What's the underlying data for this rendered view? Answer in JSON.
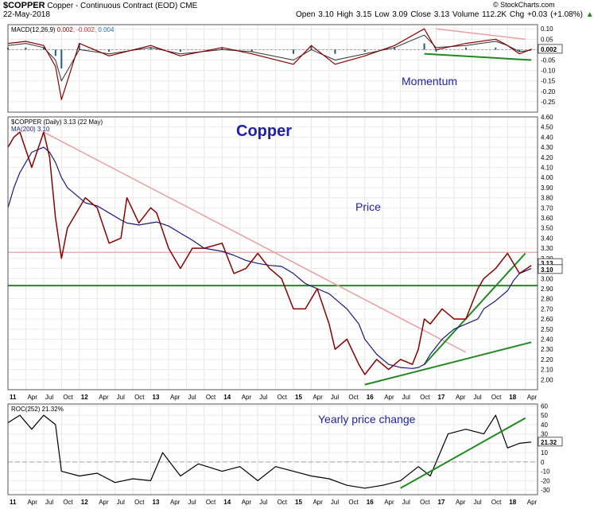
{
  "header": {
    "symbol": "$COPPER",
    "description": "Copper - Continuous Contract (EOD)",
    "exchange": "CME",
    "date": "22-May-2018",
    "quote": "Open 3.10  High 3.15  Low 3.09  Close 3.13  Volume 112.2K  Chg +0.03 (+1.08%)",
    "quote_arrow": "▲",
    "watermark": "© StockCharts.com"
  },
  "colors": {
    "price": "#8b0000",
    "ma": "#1a1a7a",
    "trend_green": "#1f8a1f",
    "trend_pink": "#e8a0a0",
    "note_blue": "#1f1faa",
    "macd_hist": "#1f5f7a"
  },
  "chart_data": [
    {
      "type": "line",
      "panel": "macd",
      "legend": "MACD(12,26,9) 0.002, -0.002, 0.004",
      "legend_parts": [
        "MACD(12,26,9)",
        "0.002",
        "-0.002",
        "0.004"
      ],
      "annotation": "Momentum",
      "ylim": [
        -0.3,
        0.12
      ],
      "yticks": [
        "0.10",
        "0.05",
        "0.00",
        "-0.05",
        "-0.10",
        "-0.15",
        "-0.20",
        "-0.25"
      ],
      "ytick_values": [
        0.1,
        0.05,
        0.0,
        -0.05,
        -0.1,
        -0.15,
        -0.2,
        -0.25
      ],
      "last_value_label": "0.002",
      "x": [
        "2011-01",
        "2011-04",
        "2011-07",
        "2011-09",
        "2011-10",
        "2012-01",
        "2012-06",
        "2013-01",
        "2013-06",
        "2014-01",
        "2014-06",
        "2015-01",
        "2015-04",
        "2015-08",
        "2016-01",
        "2016-06",
        "2016-11",
        "2017-01",
        "2017-06",
        "2017-11",
        "2018-01",
        "2018-03",
        "2018-05"
      ],
      "series": [
        {
          "name": "MACD",
          "values": [
            0.03,
            0.04,
            0.02,
            -0.08,
            -0.24,
            0.03,
            -0.03,
            0.02,
            -0.03,
            0.01,
            -0.02,
            -0.07,
            0.02,
            -0.07,
            -0.03,
            0.02,
            0.1,
            0.0,
            0.03,
            0.05,
            0.02,
            -0.02,
            0.002
          ]
        },
        {
          "name": "Signal",
          "values": [
            0.02,
            0.03,
            0.01,
            -0.05,
            -0.15,
            0.0,
            -0.02,
            0.01,
            -0.02,
            0.0,
            -0.01,
            -0.05,
            0.0,
            -0.05,
            -0.02,
            0.01,
            0.07,
            0.01,
            0.02,
            0.04,
            0.02,
            -0.01,
            -0.002
          ]
        }
      ],
      "trendlines": [
        {
          "color": "pink",
          "from": [
            "2017-01",
            0.1
          ],
          "to": [
            "2018-04",
            0.05
          ]
        },
        {
          "color": "green",
          "from": [
            "2016-11",
            -0.02
          ],
          "to": [
            "2018-05",
            -0.05
          ]
        }
      ]
    },
    {
      "type": "line",
      "panel": "price",
      "legend_price": "$COPPER (Daily) 3.13 (22 May)",
      "legend_ma": "MA(200) 3.10",
      "title": "Copper",
      "annotation": "Price",
      "ylim": [
        1.9,
        4.6
      ],
      "yticks": [
        "4.60",
        "4.50",
        "4.40",
        "4.30",
        "4.20",
        "4.10",
        "4.00",
        "3.90",
        "3.80",
        "3.70",
        "3.60",
        "3.50",
        "3.40",
        "3.30",
        "3.20",
        "3.10",
        "3.00",
        "2.90",
        "2.80",
        "2.70",
        "2.60",
        "2.50",
        "2.40",
        "2.30",
        "2.20",
        "2.10",
        "2.00"
      ],
      "ytick_values": [
        4.6,
        4.5,
        4.4,
        4.3,
        4.2,
        4.1,
        4.0,
        3.9,
        3.8,
        3.7,
        3.6,
        3.5,
        3.4,
        3.3,
        3.2,
        3.1,
        3.0,
        2.9,
        2.8,
        2.7,
        2.6,
        2.5,
        2.4,
        2.3,
        2.2,
        2.1,
        2.0
      ],
      "last_labels": [
        "3.13",
        "3.10"
      ],
      "x": [
        "2011-01",
        "2011-02",
        "2011-03",
        "2011-05",
        "2011-07",
        "2011-08",
        "2011-09",
        "2011-10",
        "2011-11",
        "2012-01",
        "2012-02",
        "2012-04",
        "2012-06",
        "2012-08",
        "2012-09",
        "2012-11",
        "2013-01",
        "2013-02",
        "2013-04",
        "2013-06",
        "2013-08",
        "2013-10",
        "2014-01",
        "2014-03",
        "2014-05",
        "2014-07",
        "2014-09",
        "2014-11",
        "2015-01",
        "2015-03",
        "2015-05",
        "2015-07",
        "2015-08",
        "2015-10",
        "2015-12",
        "2016-01",
        "2016-03",
        "2016-05",
        "2016-07",
        "2016-09",
        "2016-10",
        "2016-11",
        "2016-12",
        "2017-02",
        "2017-04",
        "2017-06",
        "2017-08",
        "2017-09",
        "2017-11",
        "2018-01",
        "2018-02",
        "2018-03",
        "2018-05"
      ],
      "series": [
        {
          "name": "Close",
          "values": [
            4.3,
            4.4,
            4.45,
            4.1,
            4.45,
            4.2,
            3.6,
            3.2,
            3.5,
            3.7,
            3.8,
            3.7,
            3.35,
            3.4,
            3.8,
            3.55,
            3.7,
            3.65,
            3.3,
            3.1,
            3.3,
            3.3,
            3.35,
            3.05,
            3.1,
            3.25,
            3.1,
            3.0,
            2.7,
            2.7,
            2.9,
            2.55,
            2.3,
            2.4,
            2.15,
            2.05,
            2.2,
            2.1,
            2.2,
            2.15,
            2.3,
            2.6,
            2.55,
            2.7,
            2.6,
            2.6,
            2.9,
            3.0,
            3.1,
            3.25,
            3.15,
            3.05,
            3.13
          ]
        },
        {
          "name": "MA(200)",
          "values": [
            3.7,
            3.9,
            4.05,
            4.25,
            4.3,
            4.25,
            4.15,
            4.0,
            3.9,
            3.8,
            3.75,
            3.72,
            3.65,
            3.58,
            3.55,
            3.53,
            3.55,
            3.56,
            3.52,
            3.45,
            3.38,
            3.3,
            3.27,
            3.23,
            3.18,
            3.15,
            3.13,
            3.12,
            3.05,
            2.95,
            2.9,
            2.85,
            2.8,
            2.7,
            2.55,
            2.4,
            2.25,
            2.15,
            2.12,
            2.11,
            2.12,
            2.15,
            2.25,
            2.4,
            2.5,
            2.55,
            2.6,
            2.7,
            2.78,
            2.88,
            2.98,
            3.05,
            3.1
          ]
        }
      ],
      "horizontal_lines": [
        {
          "color": "pink",
          "value": 3.26
        },
        {
          "color": "green",
          "value": 2.93
        }
      ],
      "trendlines": [
        {
          "color": "pink",
          "from": [
            "2011-07",
            4.45
          ],
          "to": [
            "2017-06",
            2.27
          ]
        },
        {
          "color": "green",
          "from": [
            "2016-01",
            1.95
          ],
          "to": [
            "2018-05",
            2.37
          ]
        },
        {
          "color": "green",
          "from": [
            "2016-11",
            2.15
          ],
          "to": [
            "2018-04",
            3.25
          ]
        }
      ],
      "xticks": [
        "11",
        "Apr",
        "Jul",
        "Oct",
        "12",
        "Apr",
        "Jul",
        "Oct",
        "13",
        "Apr",
        "Jul",
        "Oct",
        "14",
        "Apr",
        "Jul",
        "Oct",
        "15",
        "Apr",
        "Jul",
        "Oct",
        "16",
        "Apr",
        "Jul",
        "Oct",
        "17",
        "Apr",
        "Jul",
        "Oct",
        "18",
        "Apr"
      ]
    },
    {
      "type": "line",
      "panel": "roc",
      "legend": "ROC(252) 21.32%",
      "annotation": "Yearly price change",
      "ylim": [
        -35,
        62
      ],
      "yticks": [
        "60",
        "50",
        "40",
        "30",
        "20",
        "10",
        "0",
        "-10",
        "-20",
        "-30"
      ],
      "ytick_values": [
        60,
        50,
        40,
        30,
        20,
        10,
        0,
        -10,
        -20,
        -30
      ],
      "last_value_label": "21.32",
      "x": [
        "2011-01",
        "2011-03",
        "2011-05",
        "2011-07",
        "2011-09",
        "2011-10",
        "2012-01",
        "2012-04",
        "2012-07",
        "2012-10",
        "2013-01",
        "2013-03",
        "2013-06",
        "2013-09",
        "2014-01",
        "2014-04",
        "2014-07",
        "2014-10",
        "2015-01",
        "2015-04",
        "2015-07",
        "2015-10",
        "2016-01",
        "2016-04",
        "2016-07",
        "2016-10",
        "2016-12",
        "2017-03",
        "2017-06",
        "2017-09",
        "2017-11",
        "2018-01",
        "2018-03",
        "2018-05"
      ],
      "series": [
        {
          "name": "ROC",
          "values": [
            42,
            50,
            35,
            50,
            40,
            -10,
            -15,
            -12,
            -22,
            -18,
            -20,
            10,
            -15,
            -2,
            -10,
            -5,
            -20,
            -5,
            -10,
            -15,
            -18,
            -25,
            -28,
            -25,
            -20,
            -5,
            -15,
            30,
            35,
            30,
            50,
            15,
            20,
            21.32
          ]
        }
      ],
      "trendlines": [
        {
          "color": "green",
          "from": [
            "2016-07",
            -28
          ],
          "to": [
            "2018-04",
            47
          ]
        }
      ],
      "xticks": [
        "11",
        "Apr",
        "Jul",
        "Oct",
        "12",
        "Apr",
        "Jul",
        "Oct",
        "13",
        "Apr",
        "Jul",
        "Oct",
        "14",
        "Apr",
        "Jul",
        "Oct",
        "15",
        "Apr",
        "Jul",
        "Oct",
        "16",
        "Apr",
        "Jul",
        "Oct",
        "17",
        "Apr",
        "Jul",
        "Oct",
        "18",
        "Apr"
      ]
    }
  ]
}
